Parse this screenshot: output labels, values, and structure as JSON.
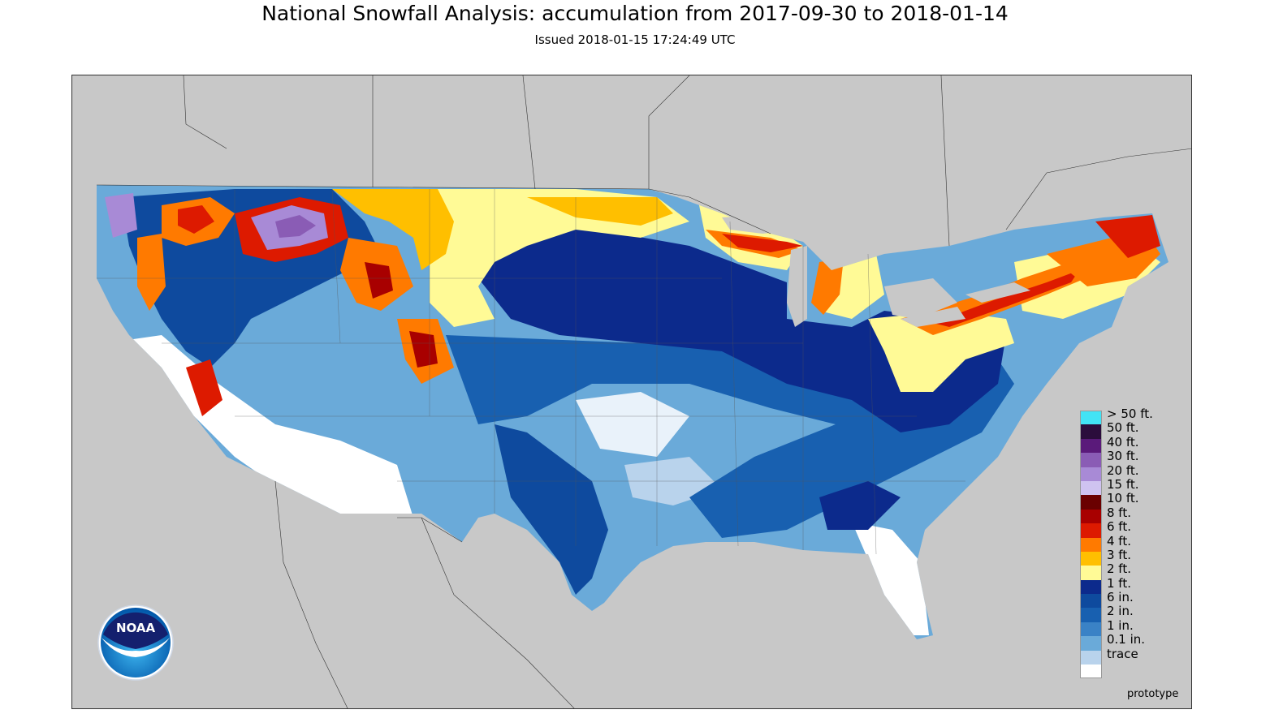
{
  "header": {
    "title": "National Snowfall Analysis: accumulation from 2017-09-30 to 2018-01-14",
    "issued": "Issued 2018-01-15 17:24:49 UTC"
  },
  "map": {
    "background_color": "#c8c8c8",
    "region": "contiguous-united-states"
  },
  "legend": {
    "items": [
      {
        "label": "> 50 ft.",
        "color": "#42e3f5"
      },
      {
        "label": "50 ft.",
        "color": "#2b0d3c"
      },
      {
        "label": "40 ft.",
        "color": "#5a1a7a"
      },
      {
        "label": "30 ft.",
        "color": "#8a5cb5"
      },
      {
        "label": "20 ft.",
        "color": "#a88ad6"
      },
      {
        "label": "15 ft.",
        "color": "#cfc3f0"
      },
      {
        "label": "10 ft.",
        "color": "#6a0000"
      },
      {
        "label": "8 ft.",
        "color": "#a80000"
      },
      {
        "label": "6 ft.",
        "color": "#dd1a00"
      },
      {
        "label": "4 ft.",
        "color": "#ff7a00"
      },
      {
        "label": "3 ft.",
        "color": "#ffbf00"
      },
      {
        "label": "2 ft.",
        "color": "#fffa96"
      },
      {
        "label": "1 ft.",
        "color": "#0c2a8c"
      },
      {
        "label": "6 in.",
        "color": "#0e4a9e"
      },
      {
        "label": "2 in.",
        "color": "#1860b0"
      },
      {
        "label": "1 in.",
        "color": "#3a82c6"
      },
      {
        "label": "0.1 in.",
        "color": "#6aaad9"
      },
      {
        "label": "trace",
        "color": "#b9d3ec"
      },
      {
        "label": "",
        "color": "#ffffff"
      }
    ]
  },
  "footer": {
    "prototype_label": "prototype"
  },
  "logo": {
    "text": "NOAA",
    "icon": "noaa-logo-icon"
  }
}
